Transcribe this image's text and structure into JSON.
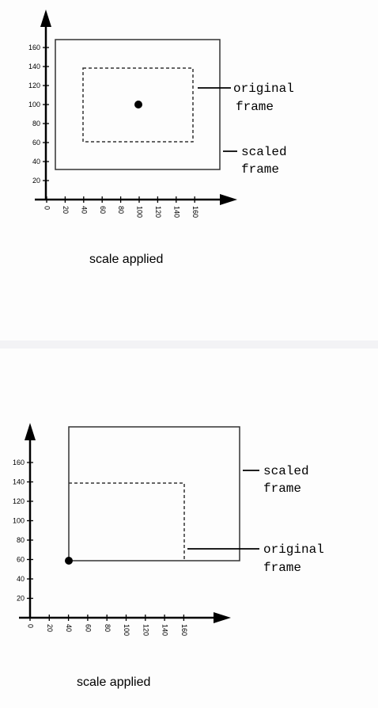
{
  "top": {
    "y_ticks": [
      "160",
      "140",
      "120",
      "100",
      "80",
      "60",
      "40",
      "20"
    ],
    "x_ticks": [
      "0",
      "20",
      "40",
      "60",
      "80",
      "100",
      "120",
      "140",
      "160"
    ],
    "label_original_line1": "original",
    "label_original_line2": "frame",
    "label_scaled_line1": "scaled",
    "label_scaled_line2": "frame",
    "caption": "scale applied"
  },
  "bottom": {
    "y_ticks": [
      "160",
      "140",
      "120",
      "100",
      "80",
      "60",
      "40",
      "20"
    ],
    "x_ticks": [
      "0",
      "20",
      "40",
      "60",
      "80",
      "100",
      "120",
      "140",
      "160"
    ],
    "label_scaled_line1": "scaled",
    "label_scaled_line2": "frame",
    "label_original_line1": "original",
    "label_original_line2": "frame",
    "caption": "scale applied"
  },
  "colors": {
    "line": "#000000",
    "frame": "#333333"
  }
}
